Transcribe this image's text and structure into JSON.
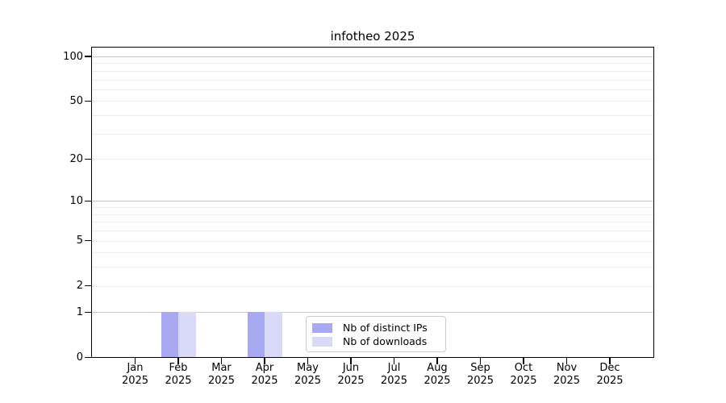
{
  "chart_data": {
    "type": "bar",
    "title": "infotheo 2025",
    "categories": [
      "Jan 2025",
      "Feb 2025",
      "Mar 2025",
      "Apr 2025",
      "May 2025",
      "Jun 2025",
      "Jul 2025",
      "Aug 2025",
      "Sep 2025",
      "Oct 2025",
      "Nov 2025",
      "Dec 2025"
    ],
    "series": [
      {
        "name": "Nb of distinct IPs",
        "color": "#a9a9f2",
        "values": [
          0,
          1,
          0,
          1,
          0,
          0,
          0,
          0,
          0,
          0,
          0,
          0
        ]
      },
      {
        "name": "Nb of downloads",
        "color": "#d9d9f8",
        "values": [
          0,
          1,
          0,
          1,
          0,
          0,
          0,
          0,
          0,
          0,
          0,
          0
        ]
      }
    ],
    "xlabel": "",
    "ylabel": "",
    "yscale": "log1p",
    "ylim": [
      0,
      100
    ],
    "y_ticks": [
      0,
      1,
      2,
      5,
      10,
      20,
      50,
      100
    ],
    "grid_values": [
      1,
      2,
      3,
      4,
      5,
      6,
      7,
      8,
      9,
      10,
      20,
      30,
      40,
      50,
      60,
      70,
      80,
      90,
      100
    ],
    "grid_decade_values": [
      1,
      10,
      100
    ],
    "grid": "horizontal-minor",
    "legend_position": "lower-center-inside",
    "bar_layout": "paired-left-right-of-month-tick"
  },
  "colors": {
    "background": "#ffffff",
    "axis": "#000000",
    "text": "#000000",
    "grid_minor": "#ececec",
    "grid_decade": "#c9c9c9",
    "legend_border": "#cccccc"
  }
}
